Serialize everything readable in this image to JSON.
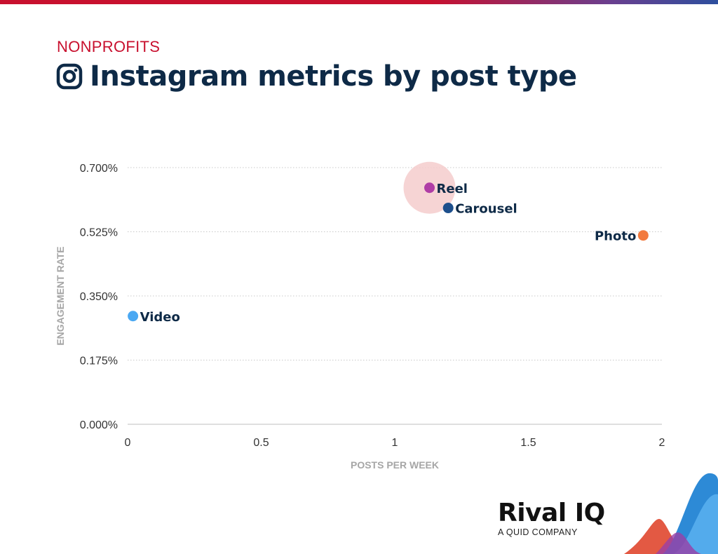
{
  "header": {
    "subtitle": "NONPROFITS",
    "title": "Instagram metrics by post type",
    "icon": "instagram-icon"
  },
  "colors": {
    "subtitle": "#c8102e",
    "title": "#0e2a47",
    "highlight": "#f4cccc"
  },
  "chart_data": {
    "type": "scatter",
    "title": "Instagram metrics by post type",
    "xlabel": "POSTS PER WEEK",
    "ylabel": "ENGAGEMENT RATE",
    "xlim": [
      0,
      2
    ],
    "ylim": [
      0,
      0.7
    ],
    "xticks": [
      0,
      0.5,
      1,
      1.5,
      2
    ],
    "xtick_labels": [
      "0",
      "0.5",
      "1",
      "1.5",
      "2"
    ],
    "yticks": [
      0,
      0.175,
      0.35,
      0.525,
      0.7
    ],
    "ytick_labels": [
      "0.000%",
      "0.175%",
      "0.350%",
      "0.525%",
      "0.700%"
    ],
    "grid": "horizontal dotted",
    "points": [
      {
        "label": "Reel",
        "x": 1.13,
        "y": 0.645,
        "color": "#b03da6",
        "highlight": true,
        "label_side": "right"
      },
      {
        "label": "Carousel",
        "x": 1.2,
        "y": 0.59,
        "color": "#1d4f8c",
        "highlight": false,
        "label_side": "right"
      },
      {
        "label": "Photo",
        "x": 1.93,
        "y": 0.515,
        "color": "#f27a3e",
        "highlight": false,
        "label_side": "left"
      },
      {
        "label": "Video",
        "x": 0.02,
        "y": 0.295,
        "color": "#4aa8f2",
        "highlight": false,
        "label_side": "right"
      }
    ]
  },
  "brand": {
    "name": "Rival IQ",
    "tagline": "A QUID COMPANY"
  }
}
